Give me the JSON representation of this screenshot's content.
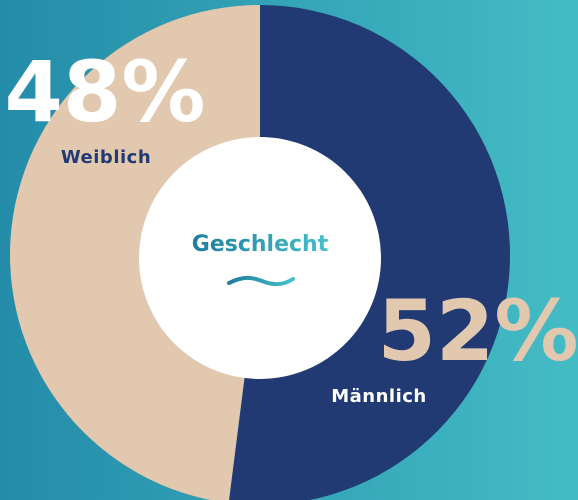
{
  "chart_data": {
    "type": "pie",
    "title": "Geschlecht",
    "categories": [
      "Männlich",
      "Weiblich"
    ],
    "values": [
      52,
      48
    ],
    "value_labels": [
      "52%",
      "48%"
    ],
    "colors": [
      "#213a73",
      "#e2c8ae"
    ]
  }
}
